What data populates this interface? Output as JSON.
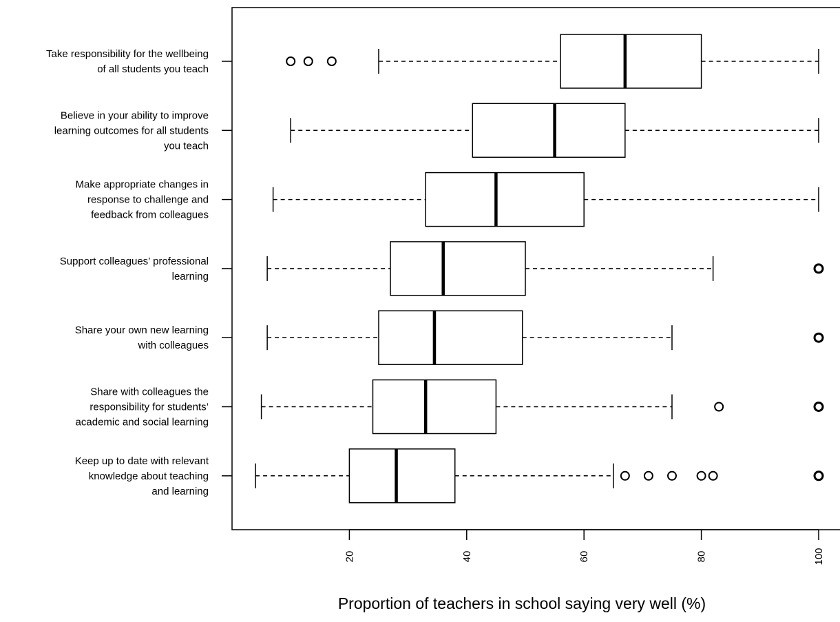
{
  "chart_data": {
    "type": "boxplot",
    "orientation": "horizontal",
    "xlabel": "Proportion of teachers in school saying very well (%)",
    "xlim": [
      0,
      104
    ],
    "xticks": [
      20,
      40,
      60,
      80,
      100
    ],
    "grid": false,
    "categories": [
      {
        "label_lines": [
          "Take responsibility for the wellbeing",
          "of all students you teach"
        ],
        "whisker_low": 25,
        "q1": 56,
        "median": 67,
        "q3": 80,
        "whisker_high": 100,
        "outliers": [
          10,
          13,
          17
        ]
      },
      {
        "label_lines": [
          "Believe in your ability to improve",
          "learning outcomes for all students",
          "you teach"
        ],
        "whisker_low": 10,
        "q1": 41,
        "median": 55,
        "q3": 67,
        "whisker_high": 100,
        "outliers": []
      },
      {
        "label_lines": [
          "Make appropriate changes in",
          "response to challenge and",
          "feedback from colleagues"
        ],
        "whisker_low": 7,
        "q1": 33,
        "median": 45,
        "q3": 60,
        "whisker_high": 100,
        "outliers": []
      },
      {
        "label_lines": [
          "Support colleagues’ professional",
          "learning"
        ],
        "whisker_low": 6,
        "q1": 27,
        "median": 36,
        "q3": 50,
        "whisker_high": 82,
        "outliers": [
          100
        ]
      },
      {
        "label_lines": [
          "Share your own new learning",
          "with colleagues"
        ],
        "whisker_low": 6,
        "q1": 25,
        "median": 34.5,
        "q3": 49.5,
        "whisker_high": 75,
        "outliers": [
          100
        ]
      },
      {
        "label_lines": [
          "Share with colleagues the",
          "responsibility for students’",
          "academic and social learning"
        ],
        "whisker_low": 5,
        "q1": 24,
        "median": 33,
        "q3": 45,
        "whisker_high": 75,
        "outliers": [
          83,
          100
        ]
      },
      {
        "label_lines": [
          "Keep up to date with relevant",
          "knowledge about teaching",
          "and learning"
        ],
        "whisker_low": 4,
        "q1": 20,
        "median": 28,
        "q3": 38,
        "whisker_high": 65,
        "outliers": [
          67,
          71,
          75,
          80,
          82,
          100
        ]
      }
    ]
  }
}
